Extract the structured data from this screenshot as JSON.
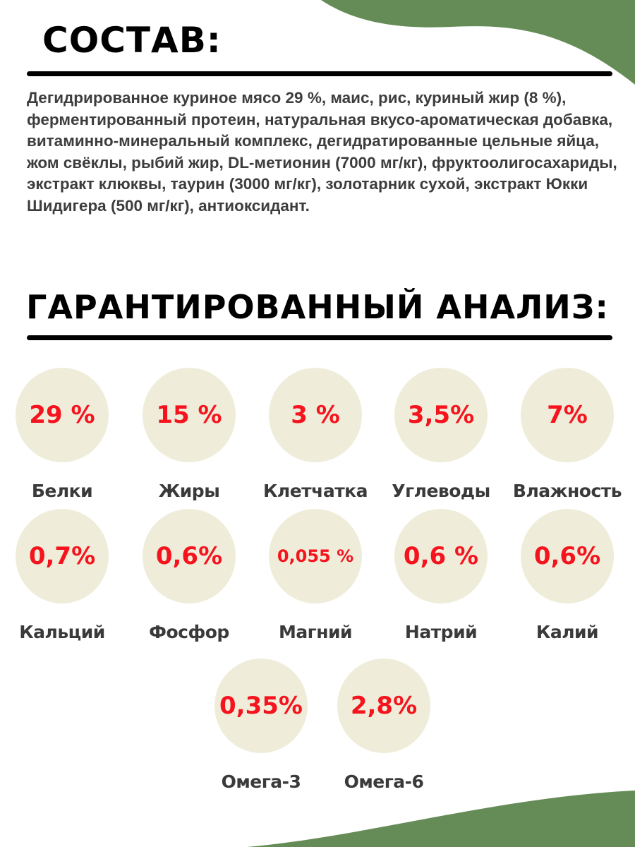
{
  "colors": {
    "accent_green": "#658c57",
    "value_red": "#f5141e",
    "circle_bg": "#efedda"
  },
  "composition": {
    "title": "СОСТАВ:",
    "text": "Дегидрированное куриное мясо 29 %, маис, рис, куриный жир (8 %), ферментированный протеин, натуральная вкусо-ароматическая добавка, витаминно-минеральный комплекс, дегидратированные цельные яйца, жом свёклы, рыбий жир, DL-метионин (7000 мг/кг), фруктоолигосахариды, экстракт клюквы, таурин (3000 мг/кг), золотарник сухой, экстракт Юкки Шидигера (500 мг/кг), антиоксидант."
  },
  "analysis": {
    "title": "ГАРАНТИРОВАННЫЙ АНАЛИЗ:",
    "items": [
      {
        "value": "29 %",
        "label": "Белки"
      },
      {
        "value": "15 %",
        "label": "Жиры"
      },
      {
        "value": "3 %",
        "label": "Клетчатка"
      },
      {
        "value": "3,5%",
        "label": "Углеводы"
      },
      {
        "value": "7%",
        "label": "Влажность"
      },
      {
        "value": "0,7%",
        "label": "Кальций"
      },
      {
        "value": "0,6%",
        "label": "Фосфор"
      },
      {
        "value": "0,055 %",
        "label": "Магний"
      },
      {
        "value": "0,6 %",
        "label": "Натрий"
      },
      {
        "value": "0,6%",
        "label": "Калий"
      },
      {
        "value": "0,35%",
        "label": "Омега-3"
      },
      {
        "value": "2,8%",
        "label": "Омега-6"
      }
    ]
  }
}
